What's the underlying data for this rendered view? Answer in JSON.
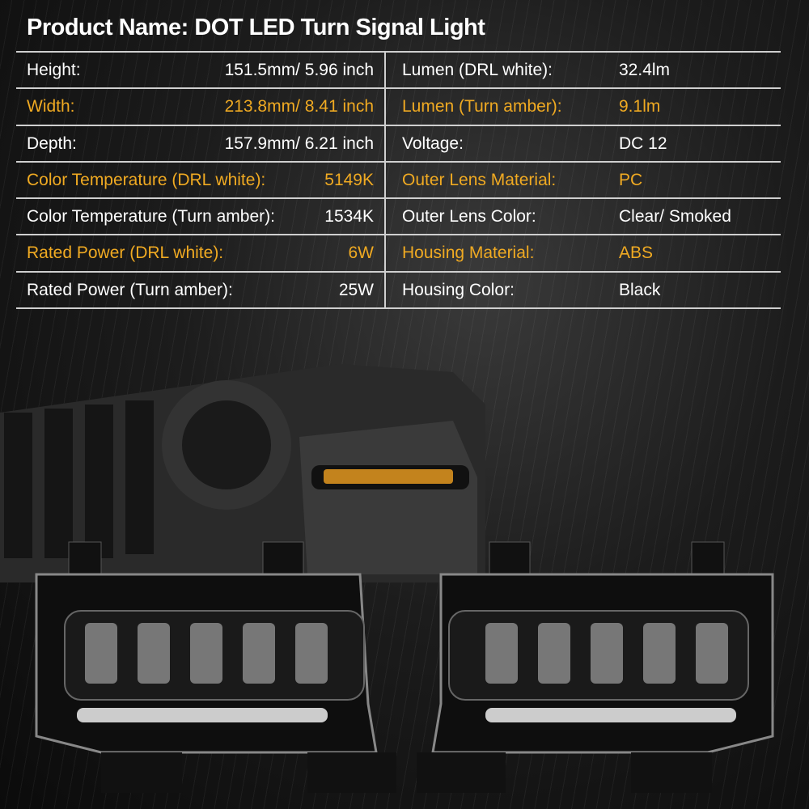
{
  "title": "Product Name: DOT LED Turn Signal Light",
  "colors": {
    "accent": "#f0aa22",
    "text": "#ffffff",
    "background": "#111111"
  },
  "rows": [
    {
      "highlight": false,
      "left_label": "Height:",
      "left_value": "151.5mm/ 5.96 inch",
      "right_label": "Lumen (DRL white):",
      "right_value": "32.4lm"
    },
    {
      "highlight": true,
      "left_label": "Width:",
      "left_value": "213.8mm/ 8.41 inch",
      "right_label": "Lumen (Turn amber):",
      "right_value": "9.1lm"
    },
    {
      "highlight": false,
      "left_label": "Depth:",
      "left_value": "157.9mm/ 6.21 inch",
      "right_label": "Voltage:",
      "right_value": "DC 12"
    },
    {
      "highlight": true,
      "left_label": "Color Temperature (DRL white):",
      "left_value": "5149K",
      "right_label": "Outer Lens Material:",
      "right_value": "PC"
    },
    {
      "highlight": false,
      "left_label": "Color Temperature (Turn amber):",
      "left_value": "1534K",
      "right_label": "Outer Lens Color:",
      "right_value": "Clear/ Smoked"
    },
    {
      "highlight": true,
      "left_label": "Rated Power (DRL white):",
      "left_value": "6W",
      "right_label": "Housing Material:",
      "right_value": "ABS"
    },
    {
      "highlight": false,
      "left_label": "Rated Power (Turn amber):",
      "left_value": "25W",
      "right_label": "Housing Color:",
      "right_value": "Black"
    }
  ]
}
